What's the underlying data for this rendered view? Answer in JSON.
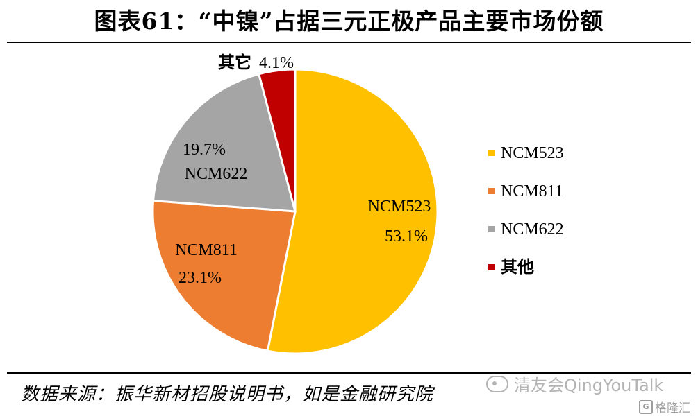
{
  "title": "图表61：“中镍”占据三元正极产品主要市场份额",
  "source": "数据来源：振华新材招股说明书，如是金融研究院",
  "watermark": "清友会QingYouTalk",
  "logo_text": "格隆汇",
  "chart_data": {
    "type": "pie",
    "title": "图表61：“中镍”占据三元正极产品主要市场份额",
    "legend_position": "right",
    "slices": [
      {
        "name": "NCM523",
        "value": 53.1,
        "label": "53.1%",
        "color": "#FFC000"
      },
      {
        "name": "NCM811",
        "value": 23.1,
        "label": "23.1%",
        "color": "#ED7D31"
      },
      {
        "name": "NCM622",
        "value": 19.7,
        "label": "19.7%",
        "color": "#A5A5A5"
      },
      {
        "name": "其他",
        "value": 4.1,
        "label": "4.1%",
        "callout_name": "其它",
        "color": "#C00000"
      }
    ]
  }
}
